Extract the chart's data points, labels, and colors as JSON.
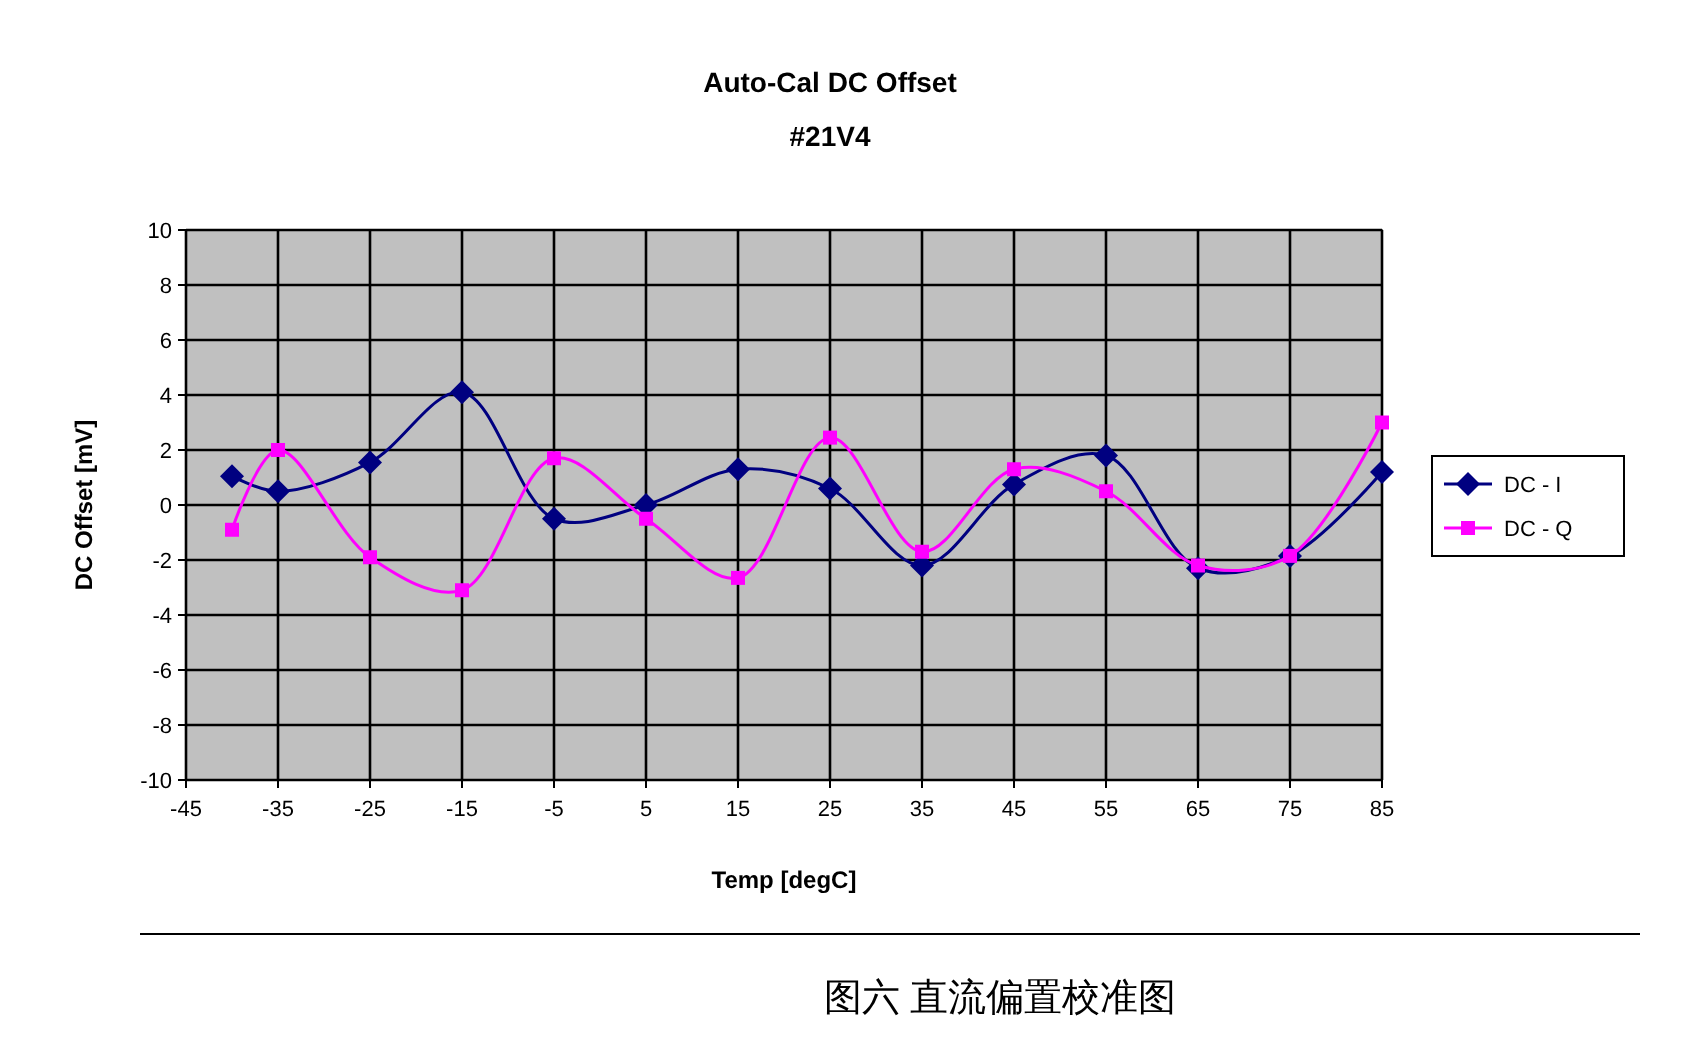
{
  "chart_data": {
    "type": "line",
    "title": "Auto-Cal DC Offset",
    "subtitle": "#21V4",
    "xlabel": "Temp [degC]",
    "ylabel": "DC Offset [mV]",
    "x": [
      -40,
      -35,
      -25,
      -15,
      -5,
      5,
      15,
      25,
      35,
      45,
      55,
      65,
      75,
      85
    ],
    "series": [
      {
        "name": "DC - I",
        "color": "#000080",
        "marker": "diamond",
        "values": [
          1.05,
          0.5,
          1.55,
          4.1,
          -0.5,
          0,
          1.3,
          0.6,
          -2.2,
          0.75,
          1.8,
          -2.3,
          -1.85,
          1.2
        ]
      },
      {
        "name": "DC - Q",
        "color": "#ff00ff",
        "marker": "square",
        "values": [
          -0.9,
          2.0,
          -1.9,
          -3.1,
          1.7,
          -0.5,
          -2.65,
          2.45,
          -1.7,
          1.3,
          0.5,
          -2.2,
          -1.85,
          3.0
        ]
      }
    ],
    "xlim": [
      -45,
      85
    ],
    "xticks": [
      -45,
      -35,
      -25,
      -15,
      -5,
      5,
      15,
      25,
      35,
      45,
      55,
      65,
      75,
      85
    ],
    "ylim": [
      -10,
      10
    ],
    "yticks": [
      -10,
      -8,
      -6,
      -4,
      -2,
      0,
      2,
      4,
      6,
      8,
      10
    ],
    "grid": true,
    "legend": "right",
    "line_style": "solid",
    "annotations": [
      "图六 直流偏置校准图"
    ]
  }
}
